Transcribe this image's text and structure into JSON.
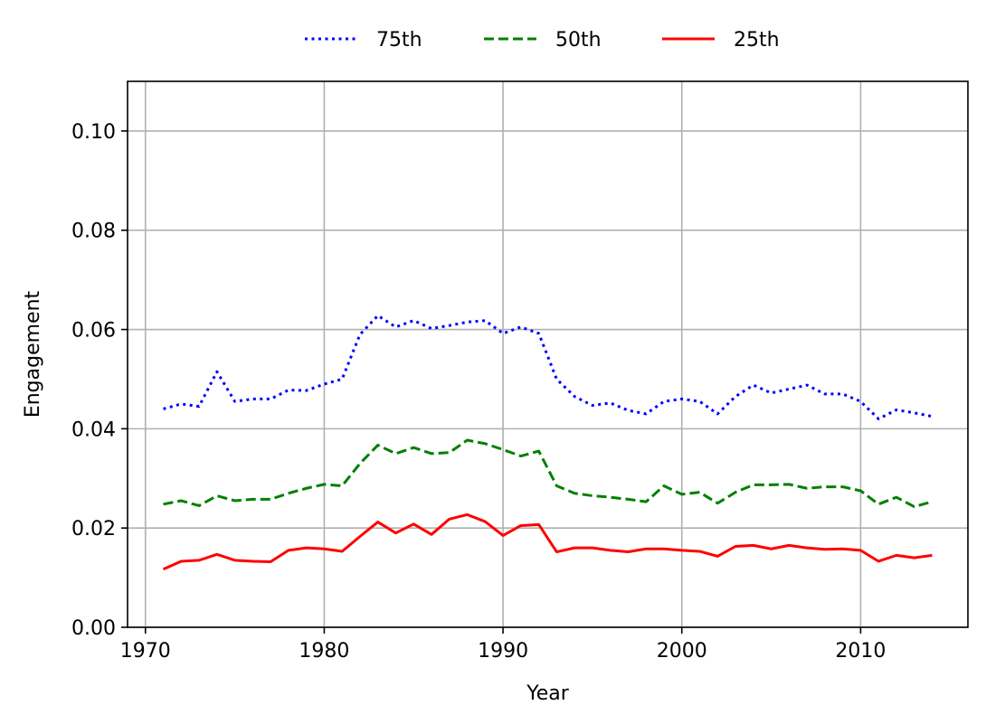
{
  "chart_data": {
    "type": "line",
    "title": "",
    "xlabel": "Year",
    "ylabel": "Engagement",
    "xlim": [
      1969,
      2016
    ],
    "ylim": [
      0.0,
      0.11
    ],
    "xticks": [
      1970,
      1980,
      1990,
      2000,
      2010
    ],
    "yticks": [
      0.0,
      0.02,
      0.04,
      0.06,
      0.08,
      0.1
    ],
    "xtick_labels": [
      "1970",
      "1980",
      "1990",
      "2000",
      "2010"
    ],
    "ytick_labels": [
      "0.00",
      "0.02",
      "0.04",
      "0.06",
      "0.08",
      "0.10"
    ],
    "grid": true,
    "legend_position": "top-center",
    "x": [
      1971,
      1972,
      1973,
      1974,
      1975,
      1976,
      1977,
      1978,
      1979,
      1980,
      1981,
      1982,
      1983,
      1984,
      1985,
      1986,
      1987,
      1988,
      1989,
      1990,
      1991,
      1992,
      1993,
      1994,
      1995,
      1996,
      1997,
      1998,
      1999,
      2000,
      2001,
      2002,
      2003,
      2004,
      2005,
      2006,
      2007,
      2008,
      2009,
      2010,
      2011,
      2012,
      2013,
      2014
    ],
    "series": [
      {
        "name": "75th",
        "color": "#0000ff",
        "style": "dotted",
        "values": [
          0.044,
          0.045,
          0.0445,
          0.0515,
          0.0455,
          0.046,
          0.046,
          0.0478,
          0.0477,
          0.049,
          0.05,
          0.059,
          0.0628,
          0.0605,
          0.0618,
          0.0602,
          0.0608,
          0.0615,
          0.0618,
          0.0592,
          0.0605,
          0.0592,
          0.05,
          0.0465,
          0.0447,
          0.0452,
          0.0437,
          0.043,
          0.0455,
          0.046,
          0.0455,
          0.043,
          0.0465,
          0.0488,
          0.0472,
          0.048,
          0.0488,
          0.047,
          0.047,
          0.0455,
          0.042,
          0.0438,
          0.0432,
          0.0425
        ]
      },
      {
        "name": "50th",
        "color": "#008000",
        "style": "dashed",
        "values": [
          0.0248,
          0.0255,
          0.0245,
          0.0265,
          0.0255,
          0.0258,
          0.0258,
          0.027,
          0.028,
          0.0288,
          0.0285,
          0.033,
          0.0367,
          0.035,
          0.0362,
          0.035,
          0.0352,
          0.0377,
          0.037,
          0.0358,
          0.0345,
          0.0355,
          0.0285,
          0.027,
          0.0265,
          0.0262,
          0.0258,
          0.0253,
          0.0285,
          0.0268,
          0.0272,
          0.025,
          0.0272,
          0.0287,
          0.0287,
          0.0288,
          0.028,
          0.0283,
          0.0283,
          0.0275,
          0.0248,
          0.0262,
          0.0243,
          0.0253
        ]
      },
      {
        "name": "25th",
        "color": "#ff0000",
        "style": "solid",
        "values": [
          0.0117,
          0.0133,
          0.0135,
          0.0147,
          0.0135,
          0.0133,
          0.0132,
          0.0155,
          0.016,
          0.0158,
          0.0153,
          0.0183,
          0.0212,
          0.019,
          0.0208,
          0.0187,
          0.0218,
          0.0227,
          0.0213,
          0.0185,
          0.0205,
          0.0207,
          0.0152,
          0.016,
          0.016,
          0.0155,
          0.0152,
          0.0158,
          0.0158,
          0.0155,
          0.0153,
          0.0143,
          0.0163,
          0.0165,
          0.0158,
          0.0165,
          0.016,
          0.0157,
          0.0158,
          0.0155,
          0.0133,
          0.0145,
          0.014,
          0.0145
        ]
      }
    ]
  }
}
